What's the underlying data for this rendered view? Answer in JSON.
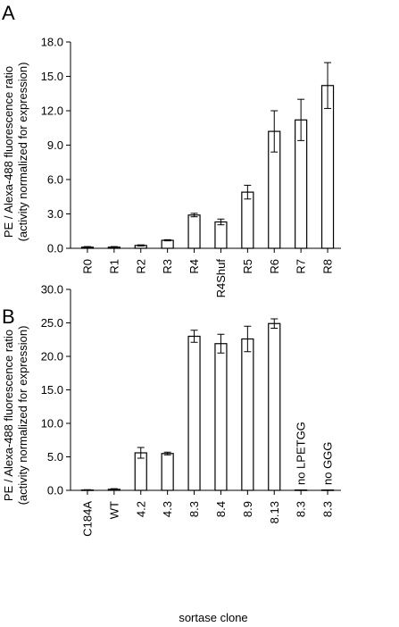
{
  "chart_data": [
    {
      "type": "bar",
      "panel_label": "A",
      "categories": [
        "R0",
        "R1",
        "R2",
        "R3",
        "R4",
        "R4Shuf",
        "R5",
        "R6",
        "R7",
        "R8"
      ],
      "values": [
        0.1,
        0.1,
        0.25,
        0.7,
        2.9,
        2.3,
        4.9,
        10.2,
        11.2,
        14.2
      ],
      "errors": [
        0.05,
        0.05,
        0.05,
        0.05,
        0.15,
        0.25,
        0.6,
        1.8,
        1.8,
        2.0
      ],
      "ylabel_line1": "PE / Alexa-488 fluorescence ratio",
      "ylabel_line2": "(activity normalized for expression)",
      "xlabel": "",
      "ylim": [
        0,
        18
      ],
      "yticks": [
        0,
        3,
        6,
        9,
        12,
        15,
        18
      ],
      "ytick_labels": [
        "0.0",
        "3.0",
        "6.0",
        "9.0",
        "12.0",
        "15.0",
        "18.0"
      ],
      "grid": false
    },
    {
      "type": "bar",
      "panel_label": "B",
      "categories": [
        "C184A",
        "WT",
        "4.2",
        "4.3",
        "8.3",
        "8.4",
        "8.9",
        "8.13",
        "8.3",
        "8.3"
      ],
      "values": [
        0.05,
        0.15,
        5.6,
        5.5,
        23.0,
        21.9,
        22.6,
        24.9,
        0.05,
        0.05
      ],
      "errors": [
        0.05,
        0.1,
        0.8,
        0.2,
        0.9,
        1.4,
        1.9,
        0.7,
        0.02,
        0.02
      ],
      "annotations": [
        "",
        "",
        "",
        "",
        "",
        "",
        "",
        "",
        "no LPETGG",
        "no GGG"
      ],
      "ylabel_line1": "PE / Alexa-488 fluorescence ratio",
      "ylabel_line2": "(activity normalized for expression)",
      "xlabel": "sortase clone",
      "ylim": [
        0,
        30
      ],
      "yticks": [
        0,
        5,
        10,
        15,
        20,
        25,
        30
      ],
      "ytick_labels": [
        "0.0",
        "5.0",
        "10.0",
        "15.0",
        "20.0",
        "25.0",
        "30.0"
      ],
      "grid": false
    }
  ]
}
